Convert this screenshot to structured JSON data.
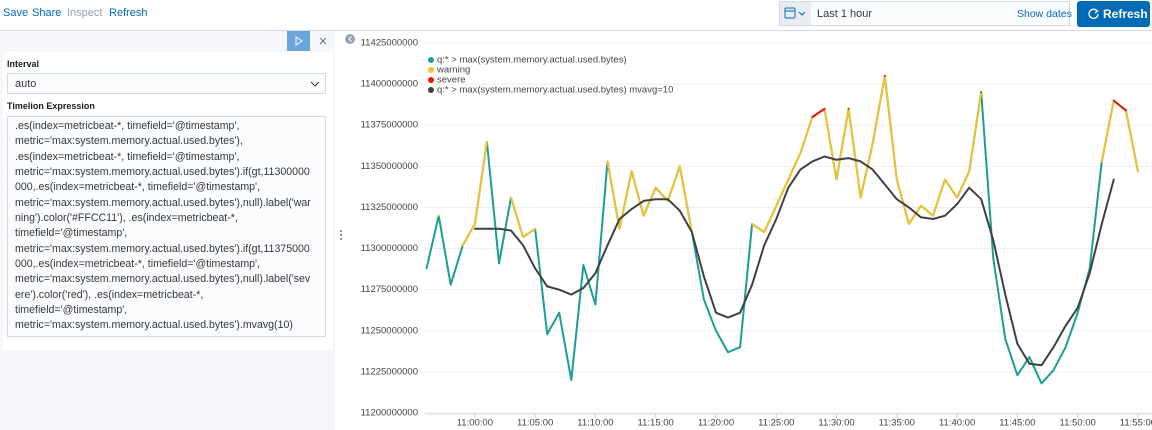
{
  "toolbar": {
    "links": [
      "Save",
      "Share",
      "Inspect",
      "Refresh"
    ]
  },
  "time_picker": {
    "range": "Last 1 hour",
    "show_dates": "Show dates",
    "refresh": "Refresh"
  },
  "sidebar": {
    "interval_label": "Interval",
    "interval_value": "auto",
    "expression_label": "Timelion Expression",
    "expression_lines": [
      ".es(index=metricbeat-*, timefield='@timestamp',",
      "metric='max:system.memory.actual.used.bytes'),",
      ".es(index=metricbeat-*, timefield='@timestamp',",
      "metric='max:system.memory.actual.used.bytes').if(gt,11300000",
      "000,.es(index=metricbeat-*, timefield='@timestamp',",
      "metric='max:system.memory.actual.used.bytes'),null).label('war",
      "ning').color('#FFCC11'), .es(index=metricbeat-*,",
      "timefield='@timestamp',",
      "metric='max:system.memory.actual.used.bytes').if(gt,11375000",
      "000,.es(index=metricbeat-*, timefield='@timestamp',",
      "metric='max:system.memory.actual.used.bytes'),null).label('sev",
      "ere').color('red'), .es(index=metricbeat-*,",
      "timefield='@timestamp',",
      "metric='max:system.memory.actual.used.bytes').mvavg(10)"
    ]
  },
  "chart_data": {
    "type": "line",
    "x": [
      "10:56:00",
      "10:57:00",
      "10:58:00",
      "10:59:00",
      "11:00:00",
      "11:01:00",
      "11:02:00",
      "11:03:00",
      "11:04:00",
      "11:05:00",
      "11:06:00",
      "11:07:00",
      "11:08:00",
      "11:09:00",
      "11:10:00",
      "11:11:00",
      "11:12:00",
      "11:13:00",
      "11:14:00",
      "11:15:00",
      "11:16:00",
      "11:17:00",
      "11:18:00",
      "11:19:00",
      "11:20:00",
      "11:21:00",
      "11:22:00",
      "11:23:00",
      "11:24:00",
      "11:25:00",
      "11:26:00",
      "11:27:00",
      "11:28:00",
      "11:29:00",
      "11:30:00",
      "11:31:00",
      "11:32:00",
      "11:33:00",
      "11:34:00",
      "11:35:00",
      "11:36:00",
      "11:37:00",
      "11:38:00",
      "11:39:00",
      "11:40:00",
      "11:41:00",
      "11:42:00",
      "11:43:00",
      "11:44:00",
      "11:45:00",
      "11:46:00",
      "11:47:00",
      "11:48:00",
      "11:49:00",
      "11:50:00",
      "11:51:00",
      "11:52:00",
      "11:53:00",
      "11:54:00",
      "11:55:00"
    ],
    "xlim": [
      "10:55:27",
      "11:56:10"
    ],
    "xticks": [
      "11:00:00",
      "11:05:00",
      "11:10:00",
      "11:15:00",
      "11:20:00",
      "11:25:00",
      "11:30:00",
      "11:35:00",
      "11:40:00",
      "11:45:00",
      "11:50:00",
      "11:55:00"
    ],
    "ylim": [
      11200000000,
      11425000000
    ],
    "yticks": [
      11200000000,
      11225000000,
      11250000000,
      11275000000,
      11300000000,
      11325000000,
      11350000000,
      11375000000,
      11400000000,
      11425000000
    ],
    "grid": true,
    "legend": "top-left",
    "series": [
      {
        "name": "q:* > max(system.memory.actual.used.bytes)",
        "color": "#1b9e94",
        "values": [
          11288000000,
          11320000000,
          11278000000,
          11302000000,
          11315000000,
          11365000000,
          11291000000,
          11331000000,
          11307000000,
          11312000000,
          11248000000,
          11261000000,
          11220000000,
          11290000000,
          11266000000,
          11353000000,
          11312000000,
          11347000000,
          11320000000,
          11337000000,
          11329000000,
          11350000000,
          11310000000,
          11269000000,
          11250000000,
          11237000000,
          11240000000,
          11315000000,
          11310000000,
          11326000000,
          11342000000,
          11358000000,
          11380000000,
          11385000000,
          11342000000,
          11385000000,
          11331000000,
          11364000000,
          11405000000,
          11342000000,
          11315000000,
          11326000000,
          11320000000,
          11342000000,
          11331000000,
          11347000000,
          11395000000,
          11294000000,
          11245000000,
          11223000000,
          11234000000,
          11218000000,
          11226000000,
          11240000000,
          11261000000,
          11288000000,
          11353000000,
          11390000000,
          11384000000,
          11347000000
        ]
      },
      {
        "name": "warning",
        "color": "#f2c12e",
        "values": [
          null,
          11320000000,
          null,
          11302000000,
          11315000000,
          11365000000,
          null,
          11331000000,
          11307000000,
          11312000000,
          null,
          null,
          null,
          null,
          null,
          11353000000,
          11312000000,
          11347000000,
          11320000000,
          11337000000,
          11329000000,
          11350000000,
          11310000000,
          null,
          null,
          null,
          null,
          11315000000,
          11310000000,
          11326000000,
          11342000000,
          11358000000,
          11380000000,
          11385000000,
          11342000000,
          11385000000,
          11331000000,
          11364000000,
          11405000000,
          11342000000,
          11315000000,
          11326000000,
          11320000000,
          11342000000,
          11331000000,
          11347000000,
          11395000000,
          null,
          null,
          null,
          null,
          null,
          null,
          null,
          null,
          null,
          11353000000,
          11390000000,
          11384000000,
          11347000000
        ]
      },
      {
        "name": "severe",
        "color": "#e8150e",
        "values": [
          null,
          null,
          null,
          null,
          null,
          null,
          null,
          null,
          null,
          null,
          null,
          null,
          null,
          null,
          null,
          null,
          null,
          null,
          null,
          null,
          null,
          null,
          null,
          null,
          null,
          null,
          null,
          null,
          null,
          null,
          null,
          null,
          11380000000,
          11385000000,
          null,
          11385000000,
          null,
          null,
          11405000000,
          null,
          null,
          null,
          null,
          null,
          null,
          null,
          11395000000,
          null,
          null,
          null,
          null,
          null,
          null,
          null,
          null,
          null,
          null,
          11390000000,
          11384000000,
          null
        ]
      },
      {
        "name": "q:* > max(system.memory.actual.used.bytes) mvavg=10",
        "color": "#404040",
        "values": [
          null,
          null,
          null,
          null,
          11312000000,
          11312000000,
          11312000000,
          11311000000,
          11302000000,
          11288000000,
          11277000000,
          11275000000,
          11272000000,
          11276000000,
          11285000000,
          11302000000,
          11318000000,
          11324000000,
          11329000000,
          11330000000,
          11330000000,
          11323000000,
          11310000000,
          11283000000,
          11261000000,
          11258000000,
          11261000000,
          11278000000,
          11302000000,
          11318000000,
          11337000000,
          11348000000,
          11353000000,
          11356000000,
          11354000000,
          11355000000,
          11353000000,
          11348000000,
          11339000000,
          11330000000,
          11325000000,
          11319000000,
          11318000000,
          11320000000,
          11327000000,
          11337000000,
          11330000000,
          11305000000,
          11272000000,
          11242000000,
          11230000000,
          11229000000,
          11240000000,
          11253000000,
          11264000000,
          11285000000,
          11315000000,
          11342000000,
          null,
          null
        ]
      }
    ]
  }
}
